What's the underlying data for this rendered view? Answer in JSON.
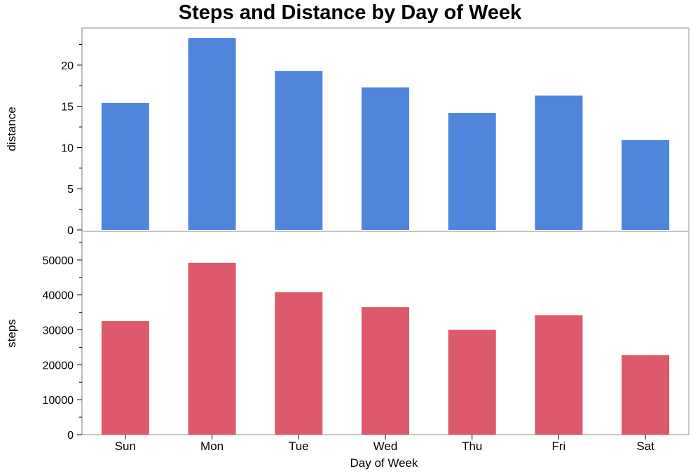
{
  "chart_data": {
    "type": "bar",
    "title": "Steps and Distance by Day of Week",
    "xlabel": "Day of Week",
    "categories": [
      "Sun",
      "Mon",
      "Tue",
      "Wed",
      "Thu",
      "Fri",
      "Sat"
    ],
    "panels": [
      {
        "ylabel": "distance",
        "color": "#4F86DC",
        "ylim": [
          0,
          24.5
        ],
        "yticks": [
          0,
          5,
          10,
          15,
          20
        ],
        "series": [
          {
            "values": [
              15.4,
              23.3,
              19.3,
              17.3,
              14.2,
              16.3,
              10.9
            ]
          }
        ]
      },
      {
        "ylabel": "steps",
        "color": "#DC5A6B",
        "ylim": [
          0,
          58000
        ],
        "yticks": [
          0,
          10000,
          20000,
          30000,
          40000,
          50000
        ],
        "series": [
          {
            "values": [
              32500,
              49200,
              40800,
              36500,
              30000,
              34200,
              22800
            ]
          }
        ]
      }
    ],
    "grid": false
  }
}
